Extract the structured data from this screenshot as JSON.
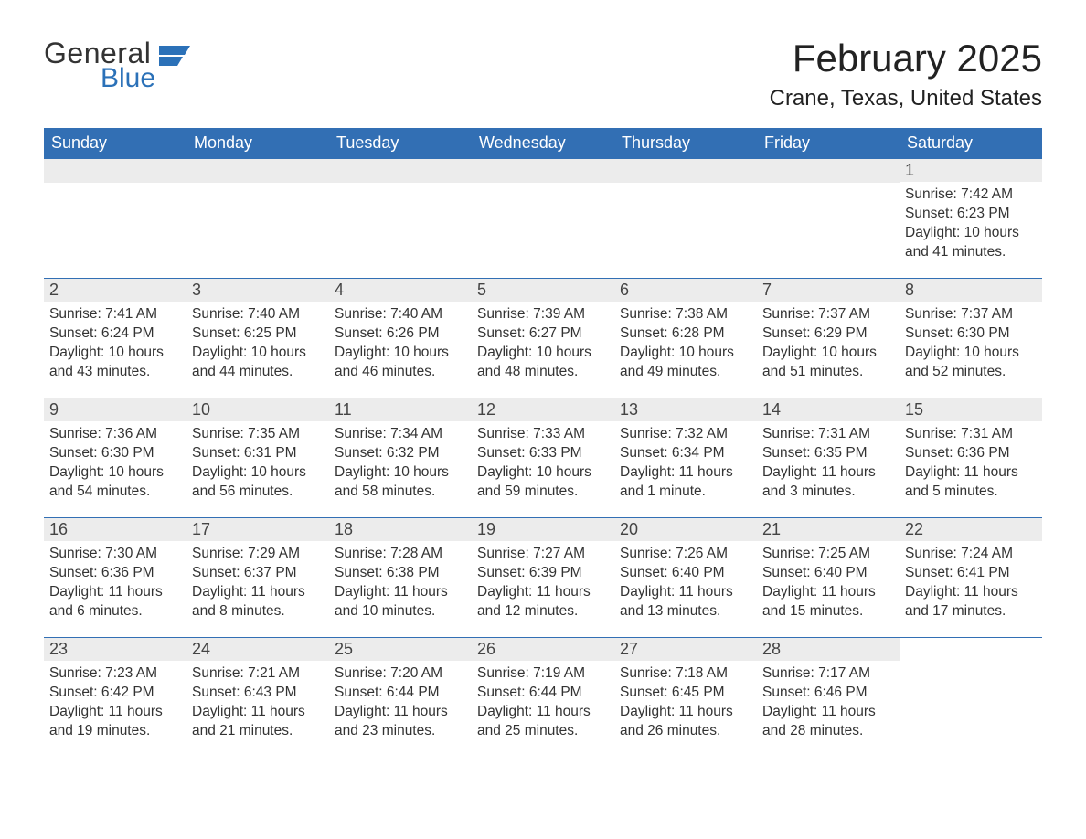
{
  "logo": {
    "general": "General",
    "blue": "Blue"
  },
  "title": {
    "month": "February 2025",
    "location": "Crane, Texas, United States"
  },
  "colors": {
    "header_bg": "#326fb4",
    "header_text": "#ffffff",
    "daynum_bg": "#ececec",
    "week_border": "#326fb4",
    "logo_blue": "#2b71b8",
    "text": "#333333",
    "background": "#ffffff"
  },
  "weekdays": [
    "Sunday",
    "Monday",
    "Tuesday",
    "Wednesday",
    "Thursday",
    "Friday",
    "Saturday"
  ],
  "layout": {
    "first_weekday_index": 6,
    "days_in_month": 28,
    "rows": 5,
    "cols": 7
  },
  "days": [
    {
      "n": 1,
      "sunrise": "7:42 AM",
      "sunset": "6:23 PM",
      "daylight": "10 hours and 41 minutes."
    },
    {
      "n": 2,
      "sunrise": "7:41 AM",
      "sunset": "6:24 PM",
      "daylight": "10 hours and 43 minutes."
    },
    {
      "n": 3,
      "sunrise": "7:40 AM",
      "sunset": "6:25 PM",
      "daylight": "10 hours and 44 minutes."
    },
    {
      "n": 4,
      "sunrise": "7:40 AM",
      "sunset": "6:26 PM",
      "daylight": "10 hours and 46 minutes."
    },
    {
      "n": 5,
      "sunrise": "7:39 AM",
      "sunset": "6:27 PM",
      "daylight": "10 hours and 48 minutes."
    },
    {
      "n": 6,
      "sunrise": "7:38 AM",
      "sunset": "6:28 PM",
      "daylight": "10 hours and 49 minutes."
    },
    {
      "n": 7,
      "sunrise": "7:37 AM",
      "sunset": "6:29 PM",
      "daylight": "10 hours and 51 minutes."
    },
    {
      "n": 8,
      "sunrise": "7:37 AM",
      "sunset": "6:30 PM",
      "daylight": "10 hours and 52 minutes."
    },
    {
      "n": 9,
      "sunrise": "7:36 AM",
      "sunset": "6:30 PM",
      "daylight": "10 hours and 54 minutes."
    },
    {
      "n": 10,
      "sunrise": "7:35 AM",
      "sunset": "6:31 PM",
      "daylight": "10 hours and 56 minutes."
    },
    {
      "n": 11,
      "sunrise": "7:34 AM",
      "sunset": "6:32 PM",
      "daylight": "10 hours and 58 minutes."
    },
    {
      "n": 12,
      "sunrise": "7:33 AM",
      "sunset": "6:33 PM",
      "daylight": "10 hours and 59 minutes."
    },
    {
      "n": 13,
      "sunrise": "7:32 AM",
      "sunset": "6:34 PM",
      "daylight": "11 hours and 1 minute."
    },
    {
      "n": 14,
      "sunrise": "7:31 AM",
      "sunset": "6:35 PM",
      "daylight": "11 hours and 3 minutes."
    },
    {
      "n": 15,
      "sunrise": "7:31 AM",
      "sunset": "6:36 PM",
      "daylight": "11 hours and 5 minutes."
    },
    {
      "n": 16,
      "sunrise": "7:30 AM",
      "sunset": "6:36 PM",
      "daylight": "11 hours and 6 minutes."
    },
    {
      "n": 17,
      "sunrise": "7:29 AM",
      "sunset": "6:37 PM",
      "daylight": "11 hours and 8 minutes."
    },
    {
      "n": 18,
      "sunrise": "7:28 AM",
      "sunset": "6:38 PM",
      "daylight": "11 hours and 10 minutes."
    },
    {
      "n": 19,
      "sunrise": "7:27 AM",
      "sunset": "6:39 PM",
      "daylight": "11 hours and 12 minutes."
    },
    {
      "n": 20,
      "sunrise": "7:26 AM",
      "sunset": "6:40 PM",
      "daylight": "11 hours and 13 minutes."
    },
    {
      "n": 21,
      "sunrise": "7:25 AM",
      "sunset": "6:40 PM",
      "daylight": "11 hours and 15 minutes."
    },
    {
      "n": 22,
      "sunrise": "7:24 AM",
      "sunset": "6:41 PM",
      "daylight": "11 hours and 17 minutes."
    },
    {
      "n": 23,
      "sunrise": "7:23 AM",
      "sunset": "6:42 PM",
      "daylight": "11 hours and 19 minutes."
    },
    {
      "n": 24,
      "sunrise": "7:21 AM",
      "sunset": "6:43 PM",
      "daylight": "11 hours and 21 minutes."
    },
    {
      "n": 25,
      "sunrise": "7:20 AM",
      "sunset": "6:44 PM",
      "daylight": "11 hours and 23 minutes."
    },
    {
      "n": 26,
      "sunrise": "7:19 AM",
      "sunset": "6:44 PM",
      "daylight": "11 hours and 25 minutes."
    },
    {
      "n": 27,
      "sunrise": "7:18 AM",
      "sunset": "6:45 PM",
      "daylight": "11 hours and 26 minutes."
    },
    {
      "n": 28,
      "sunrise": "7:17 AM",
      "sunset": "6:46 PM",
      "daylight": "11 hours and 28 minutes."
    }
  ],
  "labels": {
    "sunrise": "Sunrise: ",
    "sunset": "Sunset: ",
    "daylight": "Daylight: "
  }
}
